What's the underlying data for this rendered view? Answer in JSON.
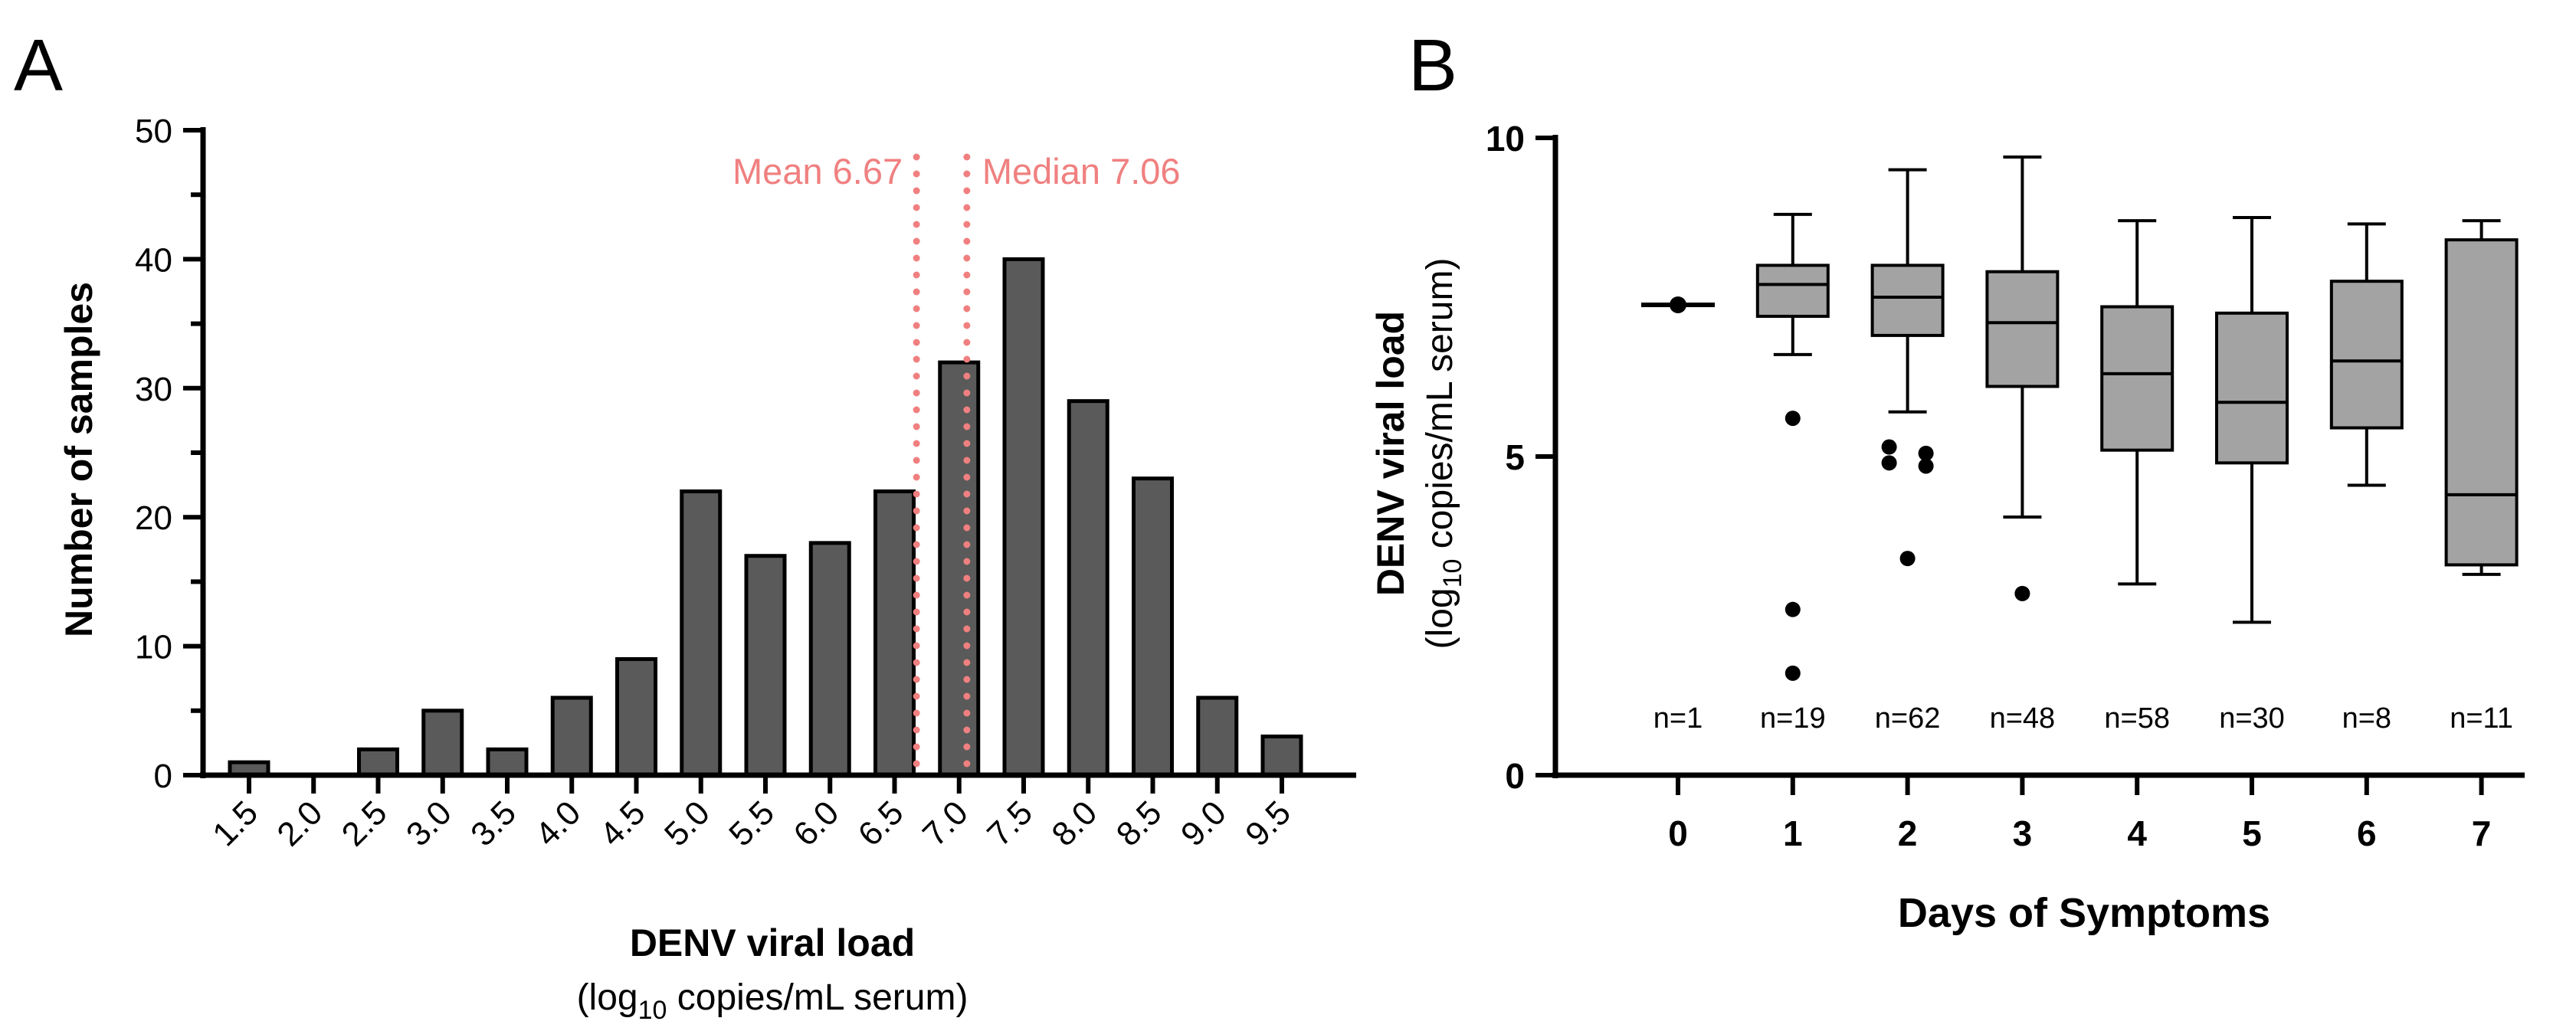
{
  "panels": {
    "a": {
      "letter": "A"
    },
    "b": {
      "letter": "B"
    }
  },
  "chart_data": [
    {
      "type": "bar",
      "panel": "A",
      "categories": [
        "1.5",
        "2.0",
        "2.5",
        "3.0",
        "3.5",
        "4.0",
        "4.5",
        "5.0",
        "5.5",
        "6.0",
        "6.5",
        "7.0",
        "7.5",
        "8.0",
        "8.5",
        "9.0",
        "9.5"
      ],
      "values": [
        1,
        0,
        2,
        5,
        2,
        6,
        9,
        22,
        17,
        18,
        22,
        32,
        40,
        29,
        23,
        6,
        3
      ],
      "ylabel": "Number of samples",
      "xlabel": "DENV viral load",
      "xlabel_prefix": "(log",
      "xlabel_sub": "10",
      "xlabel_suffix": " copies/mL serum)",
      "ylim": [
        0,
        50
      ],
      "yticks": [
        0,
        10,
        20,
        30,
        40,
        50
      ],
      "bar_color": "#5a5a5a",
      "annotations": [
        {
          "label": "Mean 6.67",
          "value": 6.67
        },
        {
          "label": "Median 7.06",
          "value": 7.06
        }
      ],
      "annotation_color": "#f08080"
    },
    {
      "type": "box",
      "panel": "B",
      "categories": [
        "0",
        "1",
        "2",
        "3",
        "4",
        "5",
        "6",
        "7"
      ],
      "boxes": [
        {
          "day": "0",
          "min": 7.38,
          "q1": 7.38,
          "median": 7.38,
          "q3": 7.38,
          "max": 7.38,
          "outliers": [],
          "n": "n=1"
        },
        {
          "day": "1",
          "min": 6.6,
          "q1": 7.2,
          "median": 7.7,
          "q3": 8.0,
          "max": 8.8,
          "outliers": [
            5.6,
            2.6,
            1.6
          ],
          "n": "n=19"
        },
        {
          "day": "2",
          "min": 5.7,
          "q1": 6.9,
          "median": 7.5,
          "q3": 8.0,
          "max": 9.5,
          "outliers": [
            5.15,
            5.05,
            4.9,
            4.85,
            3.4
          ],
          "n": "n=62"
        },
        {
          "day": "3",
          "min": 4.05,
          "q1": 6.1,
          "median": 7.1,
          "q3": 7.9,
          "max": 9.7,
          "outliers": [
            2.85
          ],
          "n": "n=48"
        },
        {
          "day": "4",
          "min": 3.0,
          "q1": 5.1,
          "median": 6.3,
          "q3": 7.35,
          "max": 8.7,
          "outliers": [],
          "n": "n=58"
        },
        {
          "day": "5",
          "min": 2.4,
          "q1": 4.9,
          "median": 5.85,
          "q3": 7.25,
          "max": 8.75,
          "outliers": [],
          "n": "n=30"
        },
        {
          "day": "6",
          "min": 4.55,
          "q1": 5.45,
          "median": 6.5,
          "q3": 7.75,
          "max": 8.65,
          "outliers": [],
          "n": "n=8"
        },
        {
          "day": "7",
          "min": 3.15,
          "q1": 3.3,
          "median": 4.4,
          "q3": 8.4,
          "max": 8.7,
          "outliers": [],
          "n": "n=11"
        }
      ],
      "xlabel": "Days of Symptoms",
      "ylabel": "DENV viral load",
      "ylabel_prefix": "(log",
      "ylabel_sub": "10",
      "ylabel_suffix": " copies/mL serum)",
      "ylim": [
        0,
        10
      ],
      "yticks": [
        0,
        5,
        10
      ],
      "box_color": "#a3a3a3"
    }
  ]
}
